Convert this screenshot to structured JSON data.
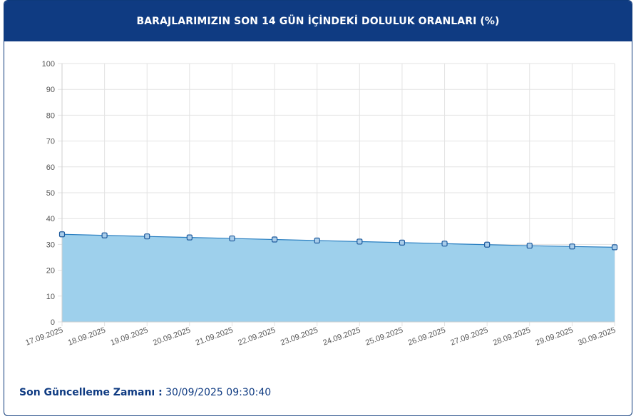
{
  "header": {
    "title": "BARAJLARIMIZIN SON 14 GÜN İÇİNDEKİ DOLULUK ORANLARI (%)"
  },
  "footer": {
    "label": "Son Güncelleme Zamanı :",
    "value": "30/09/2025 09:30:40"
  },
  "colors": {
    "header_bg": "#0f3b82",
    "fill": "#9ed0ec",
    "line": "#2a7fc1",
    "marker_fill": "#a9cdea",
    "marker_stroke": "#1e5a9c"
  },
  "chart_data": {
    "type": "area",
    "x": [
      "17.09.2025",
      "18.09.2025",
      "19.09.2025",
      "20.09.2025",
      "21.09.2025",
      "22.09.2025",
      "23.09.2025",
      "24.09.2025",
      "25.09.2025",
      "26.09.2025",
      "27.09.2025",
      "28.09.2025",
      "29.09.2025",
      "30.09.2025"
    ],
    "series": [
      {
        "values": [
          33.9,
          33.5,
          33.1,
          32.7,
          32.3,
          31.9,
          31.5,
          31.1,
          30.7,
          30.3,
          29.9,
          29.5,
          29.2,
          28.9
        ]
      }
    ],
    "ylim": [
      0,
      100
    ],
    "yticks": [
      0,
      10,
      20,
      30,
      40,
      50,
      60,
      70,
      80,
      90,
      100
    ],
    "grid": true,
    "xlabel": "",
    "ylabel": ""
  }
}
